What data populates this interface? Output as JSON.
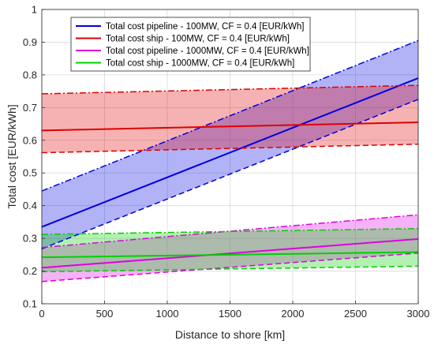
{
  "chart_data": {
    "type": "line",
    "xlabel": "Distance to shore [km]",
    "ylabel": "Total cost [EUR/kWh]",
    "xlim": [
      0,
      3000
    ],
    "ylim": [
      0.1,
      1
    ],
    "xticks": [
      "0",
      "500",
      "1000",
      "1500",
      "2000",
      "2500",
      "3000"
    ],
    "yticks": [
      "0.1",
      "0.2",
      "0.3",
      "0.4",
      "0.5",
      "0.6",
      "0.7",
      "0.8",
      "0.9",
      "1"
    ],
    "grid": true,
    "legend_position": "top-left",
    "series": [
      {
        "name": "Total cost pipeline - 100MW, CF = 0.4 [EUR/kWh]",
        "color": "#0000e0",
        "x": [
          0,
          3000
        ],
        "y": [
          0.335,
          0.79
        ],
        "upper": [
          0.445,
          0.905
        ],
        "lower": [
          0.268,
          0.725
        ],
        "upper_style": "dash-dot",
        "lower_style": "dashed"
      },
      {
        "name": "Total cost ship - 100MW, CF = 0.4 [EUR/kWh]",
        "color": "#e00000",
        "x": [
          0,
          3000
        ],
        "y": [
          0.63,
          0.655
        ],
        "upper": [
          0.742,
          0.768
        ],
        "lower": [
          0.562,
          0.588
        ],
        "upper_style": "dash-dot",
        "lower_style": "dashed"
      },
      {
        "name": "Total cost pipeline - 1000MW, CF = 0.4 [EUR/kWh]",
        "color": "#e000e0",
        "x": [
          0,
          3000
        ],
        "y": [
          0.21,
          0.298
        ],
        "upper": [
          0.272,
          0.372
        ],
        "lower": [
          0.168,
          0.255
        ],
        "upper_style": "dash-dot",
        "lower_style": "dashed"
      },
      {
        "name": "Total cost ship - 1000MW, CF = 0.4 [EUR/kWh]",
        "color": "#00d000",
        "x": [
          0,
          3000
        ],
        "y": [
          0.242,
          0.258
        ],
        "upper": [
          0.312,
          0.33
        ],
        "lower": [
          0.198,
          0.215
        ],
        "upper_style": "dash-dot",
        "lower_style": "dashed"
      }
    ]
  }
}
